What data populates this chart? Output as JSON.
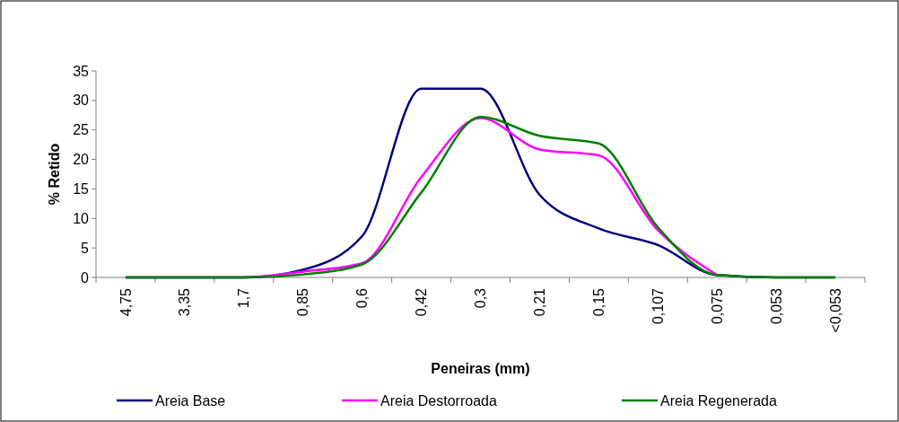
{
  "chart_data": {
    "type": "line",
    "xlabel": "Peneiras (mm)",
    "ylabel": "% Retido",
    "categories": [
      "4,75",
      "3,35",
      "1,7",
      "0,85",
      "0,6",
      "0,42",
      "0,3",
      "0,21",
      "0,15",
      "0,107",
      "0,075",
      "0,053",
      "<0,053"
    ],
    "series": [
      {
        "name": "Areia Base",
        "color": "#000080",
        "values": [
          0,
          0,
          0,
          1.3,
          7,
          32,
          32,
          14,
          8.3,
          5.5,
          0.4,
          0,
          0
        ]
      },
      {
        "name": "Areia Destorroada",
        "color": "#ff00ff",
        "values": [
          0,
          0,
          0,
          1,
          2.4,
          17,
          27,
          21.7,
          20.7,
          8,
          0.4,
          null,
          null
        ]
      },
      {
        "name": "Areia Regenerada",
        "color": "#008000",
        "values": [
          0,
          0,
          0,
          0.5,
          2.2,
          14.4,
          27.2,
          24,
          22.7,
          8.5,
          0.4,
          0,
          0
        ]
      }
    ],
    "ylim": [
      0,
      35
    ],
    "yticks": [
      0,
      5,
      10,
      15,
      20,
      25,
      30,
      35
    ],
    "grid": false,
    "legend": "bottom",
    "marker": "none",
    "line_style": "solid"
  }
}
